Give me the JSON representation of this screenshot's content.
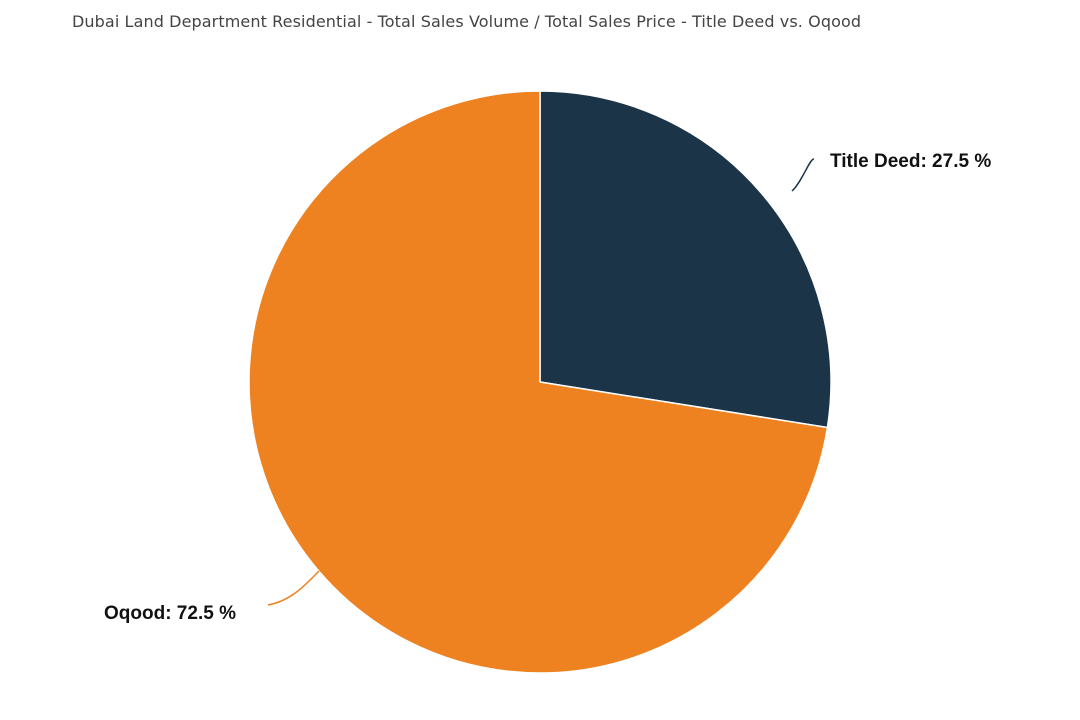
{
  "chart_data": {
    "type": "pie",
    "title": "Dubai Land Department Residential - Total Sales Volume / Total Sales Price - Title Deed vs. Oqood",
    "slices": [
      {
        "name": "Title Deed",
        "value": 27.5,
        "label": "Title Deed: 27.5 %",
        "color": "#1c3448"
      },
      {
        "name": "Oqood",
        "value": 72.5,
        "label": "Oqood: 72.5 %",
        "color": "#ee8120"
      }
    ],
    "unit": "%",
    "legend": "none",
    "grid": false
  }
}
